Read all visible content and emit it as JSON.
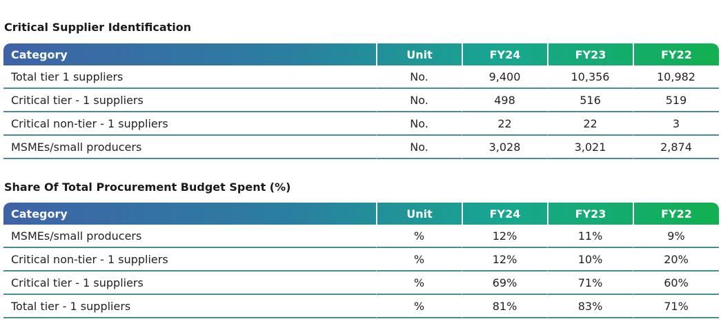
{
  "tables": [
    {
      "title": "Critical Supplier Identification",
      "headers": [
        "Category",
        "Unit",
        "FY24",
        "FY23",
        "FY22"
      ],
      "rows": [
        [
          "Total tier 1 suppliers",
          "No.",
          "9,400",
          "10,356",
          "10,982"
        ],
        [
          "Critical tier - 1 suppliers",
          "No.",
          "498",
          "516",
          "519"
        ],
        [
          "Critical non-tier - 1 suppliers",
          "No.",
          "22",
          "22",
          "3"
        ],
        [
          "MSMEs/small producers",
          "No.",
          "3,028",
          "3,021",
          "2,874"
        ]
      ]
    },
    {
      "title": "Share Of Total Procurement Budget Spent (%)",
      "headers": [
        "Category",
        "Unit",
        "FY24",
        "FY23",
        "FY22"
      ],
      "rows": [
        [
          "MSMEs/small producers",
          "%",
          "12%",
          "11%",
          "9%"
        ],
        [
          "Critical non-tier - 1 suppliers",
          "%",
          "12%",
          "10%",
          "20%"
        ],
        [
          "Critical tier - 1 suppliers",
          "%",
          "69%",
          "71%",
          "60%"
        ],
        [
          "Total tier - 1 suppliers",
          "%",
          "81%",
          "83%",
          "71%"
        ]
      ]
    }
  ],
  "colors": {
    "header_gradient_start": "#3f63a7",
    "header_gradient_mid": "#17a78f",
    "header_gradient_end": "#12b04f",
    "row_divider": "#4a8a94"
  }
}
